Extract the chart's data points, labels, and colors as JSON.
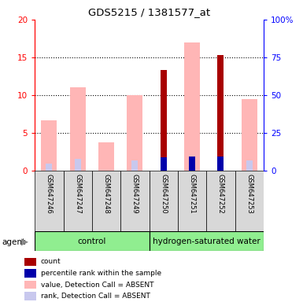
{
  "title": "GDS5215 / 1381577_at",
  "samples": [
    "GSM647246",
    "GSM647247",
    "GSM647248",
    "GSM647249",
    "GSM647250",
    "GSM647251",
    "GSM647252",
    "GSM647253"
  ],
  "value_absent": [
    6.7,
    11.0,
    3.7,
    10.0,
    null,
    null,
    null,
    9.5
  ],
  "rank_absent": [
    4.9,
    8.0,
    null,
    6.8,
    null,
    null,
    null,
    6.8
  ],
  "count": [
    null,
    null,
    null,
    null,
    13.3,
    null,
    15.3,
    null
  ],
  "percentile_rank": [
    null,
    null,
    null,
    null,
    9.0,
    9.4,
    9.4,
    null
  ],
  "value_absent_h": [
    null,
    null,
    null,
    null,
    null,
    17.0,
    null,
    null
  ],
  "rank_absent_h": [
    null,
    null,
    null,
    null,
    null,
    9.4,
    null,
    null
  ],
  "ylim_left": [
    0,
    20
  ],
  "yticks_left": [
    0,
    5,
    10,
    15,
    20
  ],
  "ytick_labels_left": [
    "0",
    "5",
    "10",
    "15",
    "20"
  ],
  "ytick_labels_right": [
    "0",
    "25",
    "50",
    "75",
    "100%"
  ],
  "color_count": "#a80000",
  "color_percentile": "#0000aa",
  "color_value_absent": "#ffb6b6",
  "color_rank_absent": "#c8c8ee",
  "group_color": "#90ee90",
  "agent_label": "agent",
  "control_label": "control",
  "hw_label": "hydrogen-saturated water",
  "legend_items": [
    {
      "label": "count",
      "color": "#a80000"
    },
    {
      "label": "percentile rank within the sample",
      "color": "#0000aa"
    },
    {
      "label": "value, Detection Call = ABSENT",
      "color": "#ffb6b6"
    },
    {
      "label": "rank, Detection Call = ABSENT",
      "color": "#c8c8ee"
    }
  ]
}
